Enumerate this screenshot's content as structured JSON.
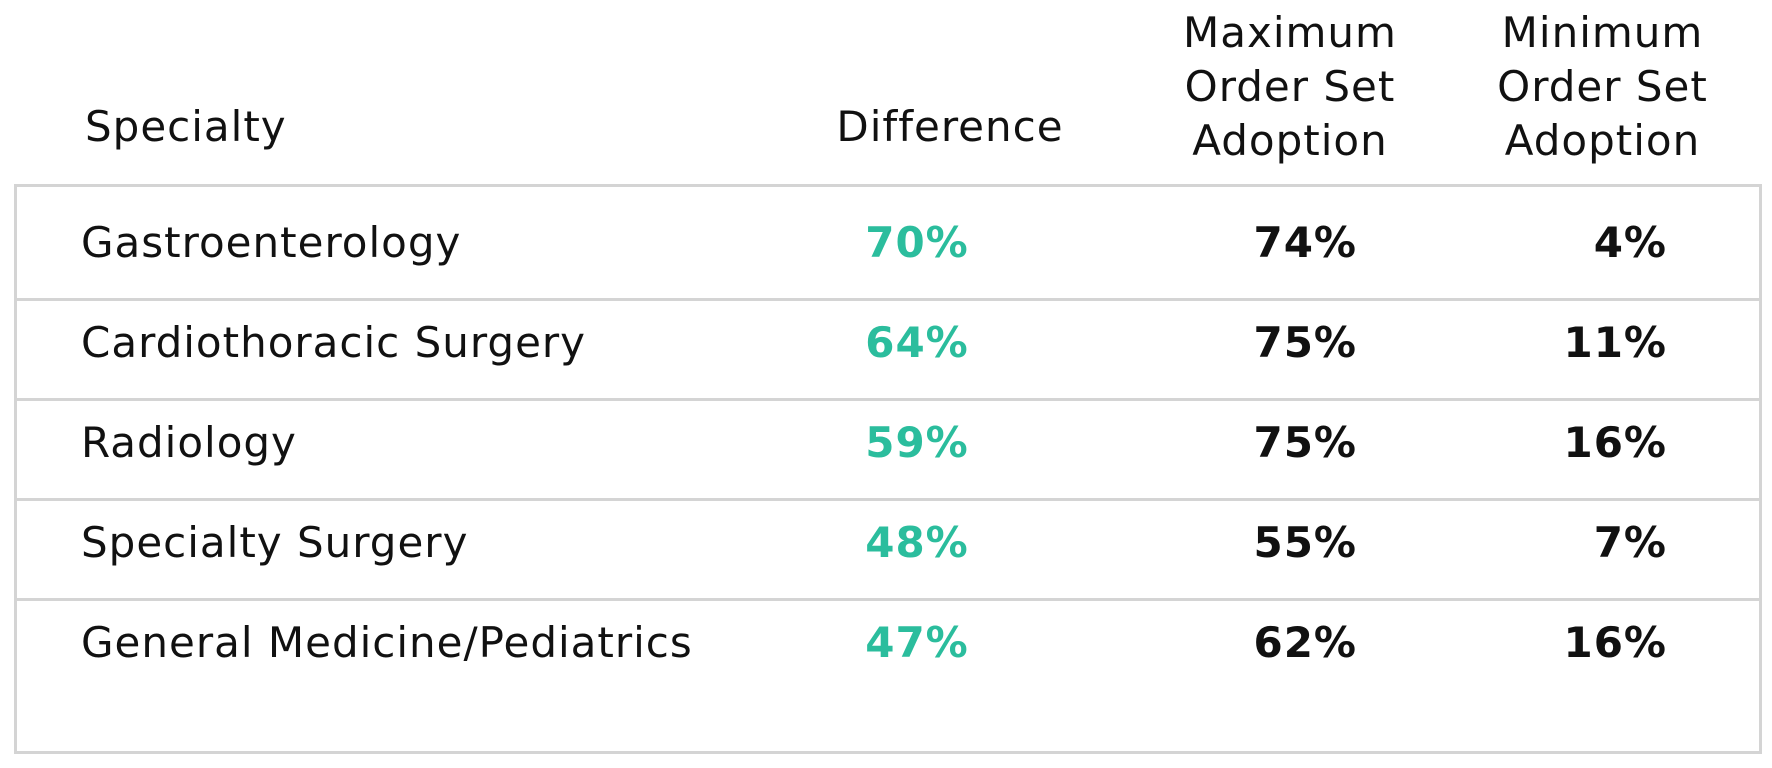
{
  "columns": {
    "specialty": "Specialty",
    "difference": "Difference",
    "max": [
      "Maximum",
      "Order Set",
      "Adoption"
    ],
    "min": [
      "Minimum",
      "Order Set",
      "Adoption"
    ]
  },
  "rows": [
    {
      "specialty": "Gastroenterology",
      "difference": "70%",
      "max": "74%",
      "min": "4%"
    },
    {
      "specialty": "Cardiothoracic Surgery",
      "difference": "64%",
      "max": "75%",
      "min": "11%"
    },
    {
      "specialty": "Radiology",
      "difference": "59%",
      "max": "75%",
      "min": "16%"
    },
    {
      "specialty": "Specialty Surgery",
      "difference": "48%",
      "max": "55%",
      "min": "7%"
    },
    {
      "specialty": "General Medicine/Pediatrics",
      "difference": "47%",
      "max": "62%",
      "min": "16%"
    }
  ],
  "colors": {
    "difference_text": "#2bbd9d",
    "border": "#d4d4d4",
    "text": "#111111"
  },
  "chart_data": {
    "type": "table",
    "columns": [
      "Specialty",
      "Difference",
      "Maximum Order Set Adoption",
      "Minimum Order Set Adoption"
    ],
    "rows": [
      [
        "Gastroenterology",
        70,
        74,
        4
      ],
      [
        "Cardiothoracic Surgery",
        64,
        75,
        11
      ],
      [
        "Radiology",
        59,
        75,
        16
      ],
      [
        "Specialty Surgery",
        48,
        55,
        7
      ],
      [
        "General Medicine/Pediatrics",
        47,
        62,
        16
      ]
    ],
    "unit": "%"
  }
}
